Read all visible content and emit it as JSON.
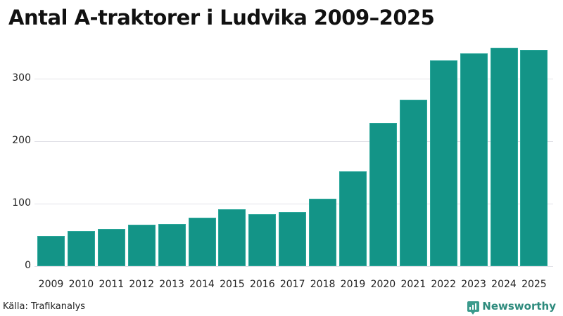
{
  "title": "Antal A-traktorer i Ludvika 2009–2025",
  "source": "Källa: Trafikanalys",
  "brand": {
    "name": "Newsworthy",
    "icon": "newsworthy-logo-icon",
    "color": "#2e8b7d"
  },
  "colors": {
    "bar": "#139487",
    "grid": "#e2e2e8"
  },
  "chart_data": {
    "type": "bar",
    "title": "Antal A-traktorer i Ludvika 2009–2025",
    "xlabel": "",
    "ylabel": "",
    "categories": [
      "2009",
      "2010",
      "2011",
      "2012",
      "2013",
      "2014",
      "2015",
      "2016",
      "2017",
      "2018",
      "2019",
      "2020",
      "2021",
      "2022",
      "2023",
      "2024",
      "2025"
    ],
    "values": [
      48,
      56,
      60,
      66,
      67,
      78,
      91,
      83,
      87,
      108,
      152,
      229,
      266,
      329,
      341,
      350,
      346
    ],
    "yticks": [
      0,
      100,
      200,
      300
    ],
    "ylim": [
      0,
      370
    ],
    "grid": true,
    "legend": null
  }
}
